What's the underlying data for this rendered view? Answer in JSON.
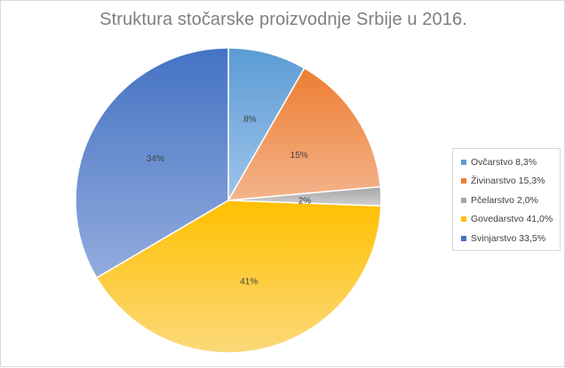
{
  "chart_data": {
    "type": "pie",
    "title": "Struktura stočarske proizvodnje Srbije u 2016.",
    "slices": [
      {
        "name": "Ovčarstvo",
        "value": 8.3,
        "label": "8%",
        "legend": "Ovčarstvo 8,3%",
        "color": "#5b9bd5",
        "color_light": "#9fc4ea"
      },
      {
        "name": "Živinarstvo",
        "value": 15.3,
        "label": "15%",
        "legend": "Živinarstvo 15,3%",
        "color": "#ed7d31",
        "color_light": "#f4b48c"
      },
      {
        "name": "Pčelarstvo",
        "value": 2.0,
        "label": "2%",
        "legend": "Pčelarstvo 2,0%",
        "color": "#a5a5a5",
        "color_light": "#d0d0d0"
      },
      {
        "name": "Govedarstvo",
        "value": 41.0,
        "label": "41%",
        "legend": "Govedarstvo 41,0%",
        "color": "#ffc000",
        "color_light": "#fbd97a"
      },
      {
        "name": "Svinjarstvo",
        "value": 33.5,
        "label": "34%",
        "legend": "Svinjarstvo 33,5%",
        "color": "#4472c4",
        "color_light": "#93acdd"
      }
    ],
    "start_angle_deg": 0,
    "direction": "clockwise",
    "legend_position": "right"
  }
}
